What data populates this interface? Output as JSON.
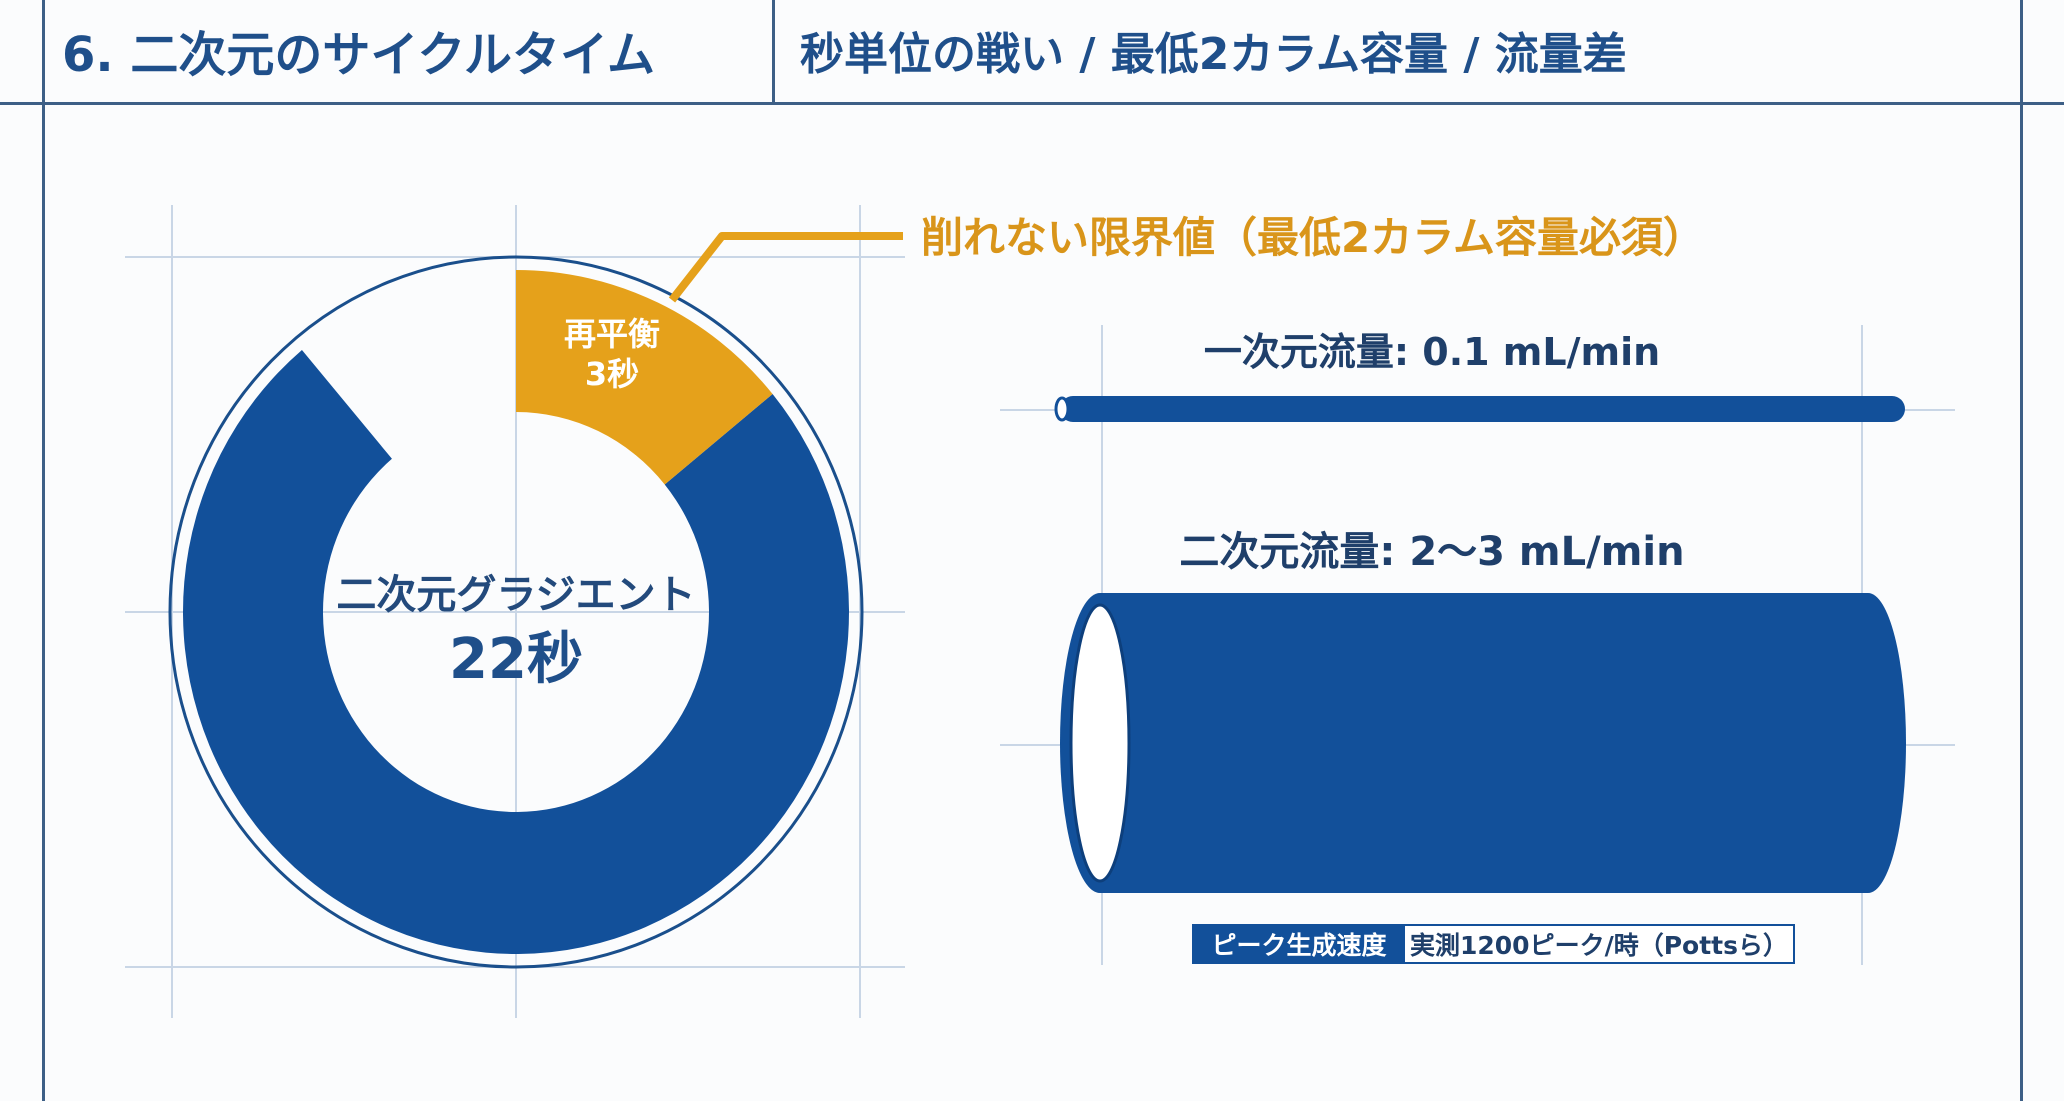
{
  "header": {
    "title": "6. 二次元のサイクルタイム",
    "subtitle": "秒単位の戦い / 最低2カラム容量 / 流量差"
  },
  "donut": {
    "callout": "削れない限界値（最低2カラム容量必須）",
    "segments": [
      {
        "label": "二次元グラジエント",
        "value_label": "22秒",
        "seconds": 22,
        "color": "#12509a"
      },
      {
        "label": "再平衡",
        "value_label": "3秒",
        "seconds": 3,
        "color": "#e5a11b"
      }
    ]
  },
  "tubes": {
    "first": {
      "label": "一次元流量: 0.1 mL/min"
    },
    "second": {
      "label": "二次元流量: 2～3 mL/min"
    }
  },
  "badge": {
    "key": "ピーク生成速度",
    "value": "実測1200ピーク/時（Pottsら）"
  },
  "colors": {
    "primary": "#12509a",
    "accent": "#e5a11b",
    "guide": "#c9d6e6",
    "frame": "#3d5f86"
  }
}
